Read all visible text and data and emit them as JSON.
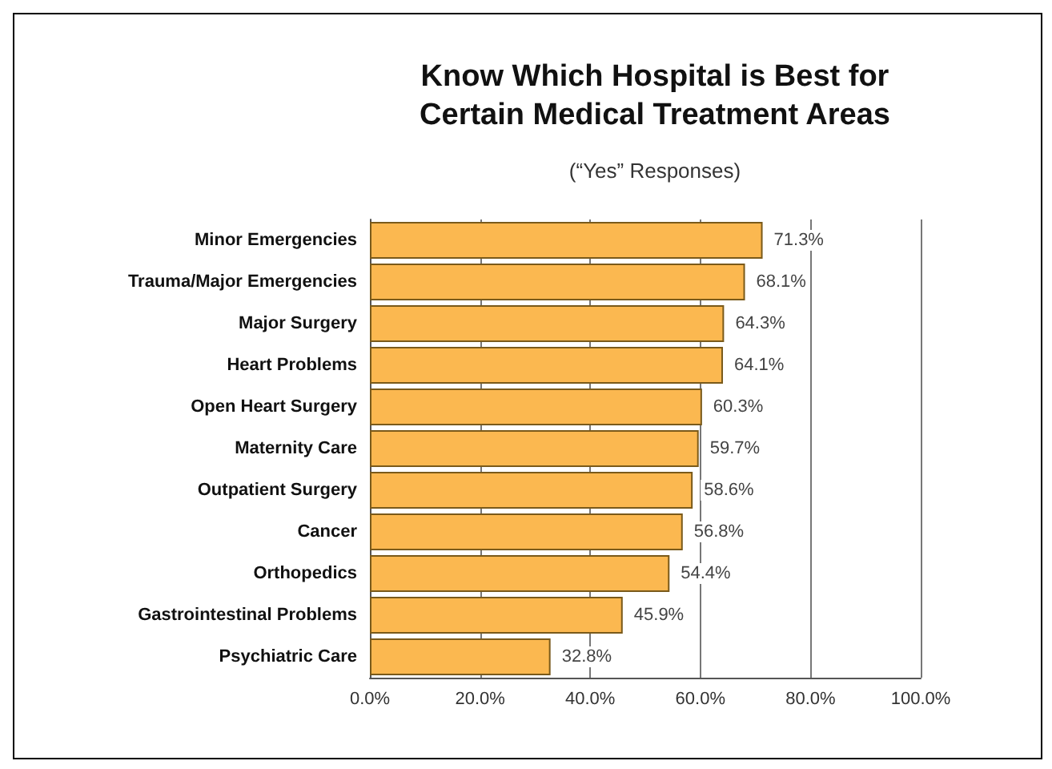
{
  "chart_data": {
    "type": "bar",
    "orientation": "horizontal",
    "title": "Know Which Hospital is Best for\nCertain Medical Treatment Areas",
    "subtitle": "(“Yes” Responses)",
    "categories": [
      "Minor Emergencies",
      "Trauma/Major Emergencies",
      "Major Surgery",
      "Heart Problems",
      "Open Heart Surgery",
      "Maternity Care",
      "Outpatient Surgery",
      "Cancer",
      "Orthopedics",
      "Gastrointestinal Problems",
      "Psychiatric Care"
    ],
    "values": [
      71.3,
      68.1,
      64.3,
      64.1,
      60.3,
      59.7,
      58.6,
      56.8,
      54.4,
      45.9,
      32.8
    ],
    "value_labels": [
      "71.3%",
      "68.1%",
      "64.3%",
      "64.1%",
      "60.3%",
      "59.7%",
      "58.6%",
      "56.8%",
      "54.4%",
      "45.9%",
      "32.8%"
    ],
    "color": "#fbb850",
    "xlim": [
      0,
      100
    ],
    "xticks": [
      {
        "value": 0,
        "label": "0.0%"
      },
      {
        "value": 20,
        "label": "20.0%"
      },
      {
        "value": 40,
        "label": "40.0%"
      },
      {
        "value": 60,
        "label": "60.0%"
      },
      {
        "value": 80,
        "label": "80.0%"
      },
      {
        "value": 100,
        "label": "100.0%"
      }
    ],
    "grid": "x"
  }
}
